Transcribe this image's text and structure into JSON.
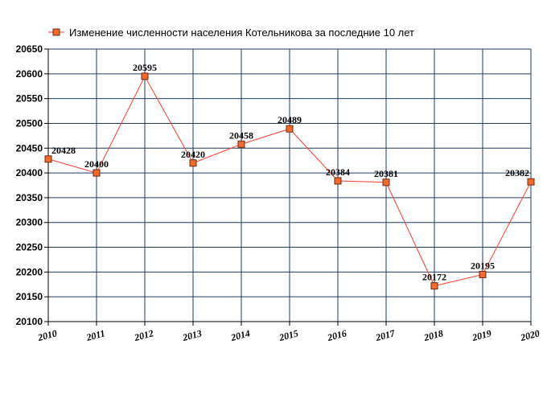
{
  "chart_data": {
    "type": "line",
    "title": "",
    "xlabel": "",
    "ylabel": "",
    "categories": [
      "2010",
      "2011",
      "2012",
      "2013",
      "2014",
      "2015",
      "2016",
      "2017",
      "2018",
      "2019",
      "2020"
    ],
    "series": [
      {
        "name": "Изменение численности населения Котельникова за последние 10 лет",
        "values": [
          20428,
          20400,
          20595,
          20420,
          20458,
          20489,
          20384,
          20381,
          20172,
          20195,
          20382
        ]
      }
    ],
    "data_labels": [
      "20428",
      "20400",
      "20595",
      "20420",
      "20458",
      "20489",
      "20384",
      "20381",
      "20172",
      "20195",
      "20382"
    ],
    "ylim": [
      20100,
      20650
    ],
    "yticks": [
      20100,
      20150,
      20200,
      20250,
      20300,
      20350,
      20400,
      20450,
      20500,
      20550,
      20600,
      20650
    ],
    "grid": true,
    "legend_position": "top",
    "colors": {
      "line": "#ff3b30",
      "marker_fill": "#f26a2e",
      "marker_stroke": "#6b2a10",
      "grid": "#1f3a5f",
      "axis": "#000000"
    }
  }
}
